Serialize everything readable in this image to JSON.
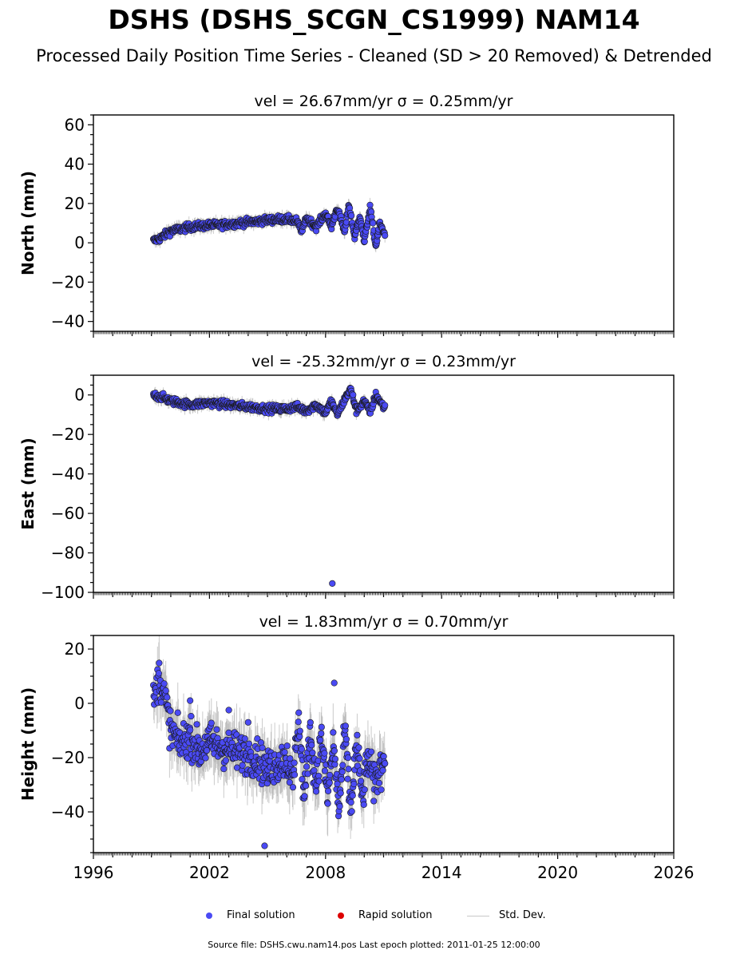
{
  "title": "DSHS (DSHS_SCGN_CS1999) NAM14",
  "subtitle": "Processed Daily Position Time Series - Cleaned (SD > 20 Removed) & Detrended",
  "legend": {
    "final": "Final solution",
    "rapid": "Rapid solution",
    "std": "Std. Dev."
  },
  "footer": "Source file: DSHS.cwu.nam14.pos  Last epoch plotted: 2011-01-25 12:00:00",
  "colors": {
    "final": "#4a4af4",
    "rapid": "#dd0000",
    "std": "#b4b4b4",
    "edge": "#1a1a1a"
  },
  "chart_data": [
    {
      "type": "scatter",
      "panel_title": "vel = 26.67mm/yr   σ = 0.25mm/yr",
      "ylabel": "North (mm)",
      "xlim": [
        1996,
        2026
      ],
      "ylim": [
        -45,
        65
      ],
      "yticks": [
        -40,
        -20,
        0,
        20,
        40,
        60
      ],
      "data_range": [
        1999.1,
        2011.07
      ],
      "series": [
        {
          "x": [
            1999.1,
            1999.4,
            1999.7,
            2000.0,
            2000.5,
            2001.0,
            2001.5,
            2002.0,
            2002.5,
            2003.0,
            2003.5,
            2004.0,
            2004.5,
            2005.0,
            2005.5,
            2006.0,
            2006.5,
            2006.8,
            2007.0,
            2007.5,
            2008.0,
            2008.3,
            2008.6,
            2009.0,
            2009.2,
            2009.5,
            2009.8,
            2010.0,
            2010.3,
            2010.6,
            2010.8,
            2011.0
          ],
          "y": [
            1,
            2,
            4,
            6,
            7,
            8,
            8.5,
            9,
            9,
            9.5,
            10,
            10.5,
            11,
            11.5,
            12,
            12,
            11,
            6,
            13,
            8,
            15,
            8,
            18,
            5,
            20,
            3,
            14,
            0,
            18,
            -2,
            10,
            5
          ]
        }
      ],
      "outliers": []
    },
    {
      "type": "scatter",
      "panel_title": "vel = -25.32mm/yr   σ = 0.23mm/yr",
      "ylabel": "East (mm)",
      "xlim": [
        1996,
        2026
      ],
      "ylim": [
        -100,
        10
      ],
      "yticks": [
        -100,
        -80,
        -60,
        -40,
        -20,
        0
      ],
      "data_range": [
        1999.1,
        2011.07
      ],
      "series": [
        {
          "x": [
            1999.1,
            1999.5,
            2000.0,
            2000.5,
            2001.0,
            2001.5,
            2002.0,
            2002.5,
            2003.0,
            2003.5,
            2004.0,
            2004.5,
            2005.0,
            2005.5,
            2006.0,
            2006.5,
            2007.0,
            2007.5,
            2008.0,
            2008.3,
            2008.6,
            2009.0,
            2009.3,
            2009.6,
            2010.0,
            2010.3,
            2010.6,
            2011.0
          ],
          "y": [
            0,
            -1,
            -3,
            -4,
            -5,
            -4.5,
            -4,
            -4.5,
            -5,
            -5.5,
            -6,
            -6.5,
            -7,
            -7,
            -7,
            -6,
            -8,
            -5,
            -9,
            -3,
            -10,
            -2,
            3,
            -8,
            -3,
            -9,
            0,
            -6
          ]
        }
      ],
      "outliers": [
        [
          2008.35,
          -95.5
        ]
      ]
    },
    {
      "type": "scatter",
      "panel_title": "vel = 1.83mm/yr   σ = 0.70mm/yr",
      "ylabel": "Height (mm)",
      "xlim": [
        1996,
        2026
      ],
      "ylim": [
        -55,
        25
      ],
      "yticks": [
        -40,
        -20,
        0,
        20
      ],
      "xticks": [
        1996,
        2002,
        2008,
        2014,
        2020,
        2026
      ],
      "data_range": [
        1999.1,
        2011.07
      ],
      "series": [
        {
          "x": [
            1999.1,
            1999.4,
            1999.7,
            2000.0,
            2000.5,
            2001.0,
            2001.5,
            2002.0,
            2002.5,
            2003.0,
            2003.5,
            2004.0,
            2004.5,
            2005.0,
            2005.5,
            2006.0,
            2006.3,
            2006.6,
            2006.9,
            2007.2,
            2007.5,
            2007.8,
            2008.1,
            2008.4,
            2008.7,
            2009.0,
            2009.3,
            2009.6,
            2009.9,
            2010.2,
            2010.5,
            2010.8,
            2011.0
          ],
          "y": [
            0,
            10,
            2,
            -10,
            -15,
            -12,
            -18,
            -14,
            -16,
            -17,
            -18,
            -19,
            -20,
            -25,
            -22,
            -20,
            -30,
            -5,
            -35,
            -10,
            -30,
            -12,
            -35,
            -15,
            -40,
            -10,
            -40,
            -15,
            -35,
            -20,
            -30,
            -25,
            -20
          ]
        }
      ],
      "outliers": [
        [
          2008.45,
          7.5
        ],
        [
          2004.85,
          -52.5
        ],
        [
          2003.0,
          -2.5
        ],
        [
          2001.0,
          1.0
        ],
        [
          2004.0,
          -7.0
        ]
      ]
    }
  ]
}
